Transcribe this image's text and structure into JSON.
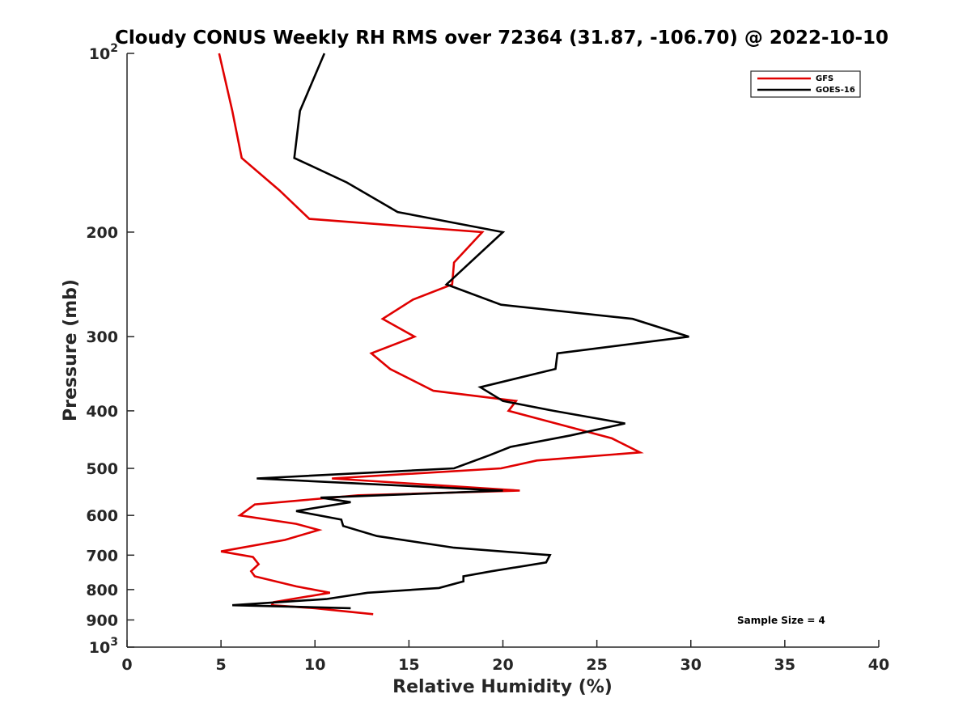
{
  "chart_data": {
    "type": "line",
    "title": "Cloudy CONUS Weekly RH RMS over 72364 (31.87, -106.70) @ 2022-10-10",
    "xlabel": "Relative Humidity (%)",
    "ylabel": "Pressure (mb)",
    "xlim": [
      0,
      40
    ],
    "ylim": [
      100,
      1000
    ],
    "yscale": "log",
    "y_reversed": true,
    "grid": false,
    "legend_position": "top-right",
    "x_ticks": [
      "0",
      "5",
      "10",
      "15",
      "20",
      "25",
      "30",
      "35",
      "40"
    ],
    "y_ticks": [
      {
        "value": 100,
        "base": "10",
        "exp": "2"
      },
      {
        "value": 200,
        "label": "200"
      },
      {
        "value": 300,
        "label": "300"
      },
      {
        "value": 400,
        "label": "400"
      },
      {
        "value": 500,
        "label": "500"
      },
      {
        "value": 600,
        "label": "600"
      },
      {
        "value": 700,
        "label": "700"
      },
      {
        "value": 800,
        "label": "800"
      },
      {
        "value": 900,
        "label": "900"
      },
      {
        "value": 1000,
        "base": "10",
        "exp": "3"
      }
    ],
    "series": [
      {
        "name": "GFS",
        "color": "#e00000",
        "points": [
          [
            4.9,
            100
          ],
          [
            5.6,
            125
          ],
          [
            6.1,
            150
          ],
          [
            8.1,
            170
          ],
          [
            9.7,
            190
          ],
          [
            18.9,
            200
          ],
          [
            17.4,
            225
          ],
          [
            17.3,
            245
          ],
          [
            15.2,
            260
          ],
          [
            13.6,
            280
          ],
          [
            15.3,
            300
          ],
          [
            13.0,
            320
          ],
          [
            14.0,
            340
          ],
          [
            16.3,
            370
          ],
          [
            20.7,
            385
          ],
          [
            20.3,
            400
          ],
          [
            22.2,
            415
          ],
          [
            25.8,
            445
          ],
          [
            27.3,
            470
          ],
          [
            21.8,
            485
          ],
          [
            19.9,
            500
          ],
          [
            10.9,
            520
          ],
          [
            20.9,
            545
          ],
          [
            12.3,
            555
          ],
          [
            6.8,
            575
          ],
          [
            6.0,
            600
          ],
          [
            9.0,
            620
          ],
          [
            10.2,
            635
          ],
          [
            8.4,
            660
          ],
          [
            5.0,
            690
          ],
          [
            6.7,
            705
          ],
          [
            7.0,
            725
          ],
          [
            6.6,
            745
          ],
          [
            6.8,
            760
          ],
          [
            9.0,
            790
          ],
          [
            10.8,
            810
          ],
          [
            7.8,
            840
          ],
          [
            7.7,
            850
          ],
          [
            10.0,
            860
          ],
          [
            13.1,
            880
          ]
        ]
      },
      {
        "name": "GOES-16",
        "color": "#000000",
        "points": [
          [
            10.5,
            100
          ],
          [
            9.2,
            125
          ],
          [
            8.9,
            150
          ],
          [
            11.7,
            165
          ],
          [
            14.4,
            185
          ],
          [
            20.0,
            200
          ],
          [
            17.0,
            245
          ],
          [
            19.9,
            265
          ],
          [
            26.9,
            280
          ],
          [
            29.9,
            300
          ],
          [
            22.9,
            320
          ],
          [
            22.8,
            340
          ],
          [
            18.8,
            365
          ],
          [
            20.0,
            385
          ],
          [
            22.7,
            400
          ],
          [
            26.5,
            420
          ],
          [
            23.6,
            440
          ],
          [
            20.4,
            460
          ],
          [
            19.3,
            475
          ],
          [
            17.4,
            500
          ],
          [
            6.9,
            520
          ],
          [
            20.0,
            545
          ],
          [
            10.3,
            560
          ],
          [
            11.9,
            570
          ],
          [
            9.0,
            590
          ],
          [
            11.4,
            610
          ],
          [
            11.5,
            625
          ],
          [
            13.3,
            650
          ],
          [
            17.4,
            680
          ],
          [
            22.5,
            700
          ],
          [
            22.3,
            720
          ],
          [
            19.4,
            745
          ],
          [
            17.9,
            760
          ],
          [
            17.9,
            775
          ],
          [
            16.6,
            795
          ],
          [
            12.8,
            810
          ],
          [
            10.6,
            830
          ],
          [
            5.6,
            850
          ],
          [
            11.9,
            860
          ]
        ]
      }
    ],
    "annotation": "Sample Size = 4"
  }
}
